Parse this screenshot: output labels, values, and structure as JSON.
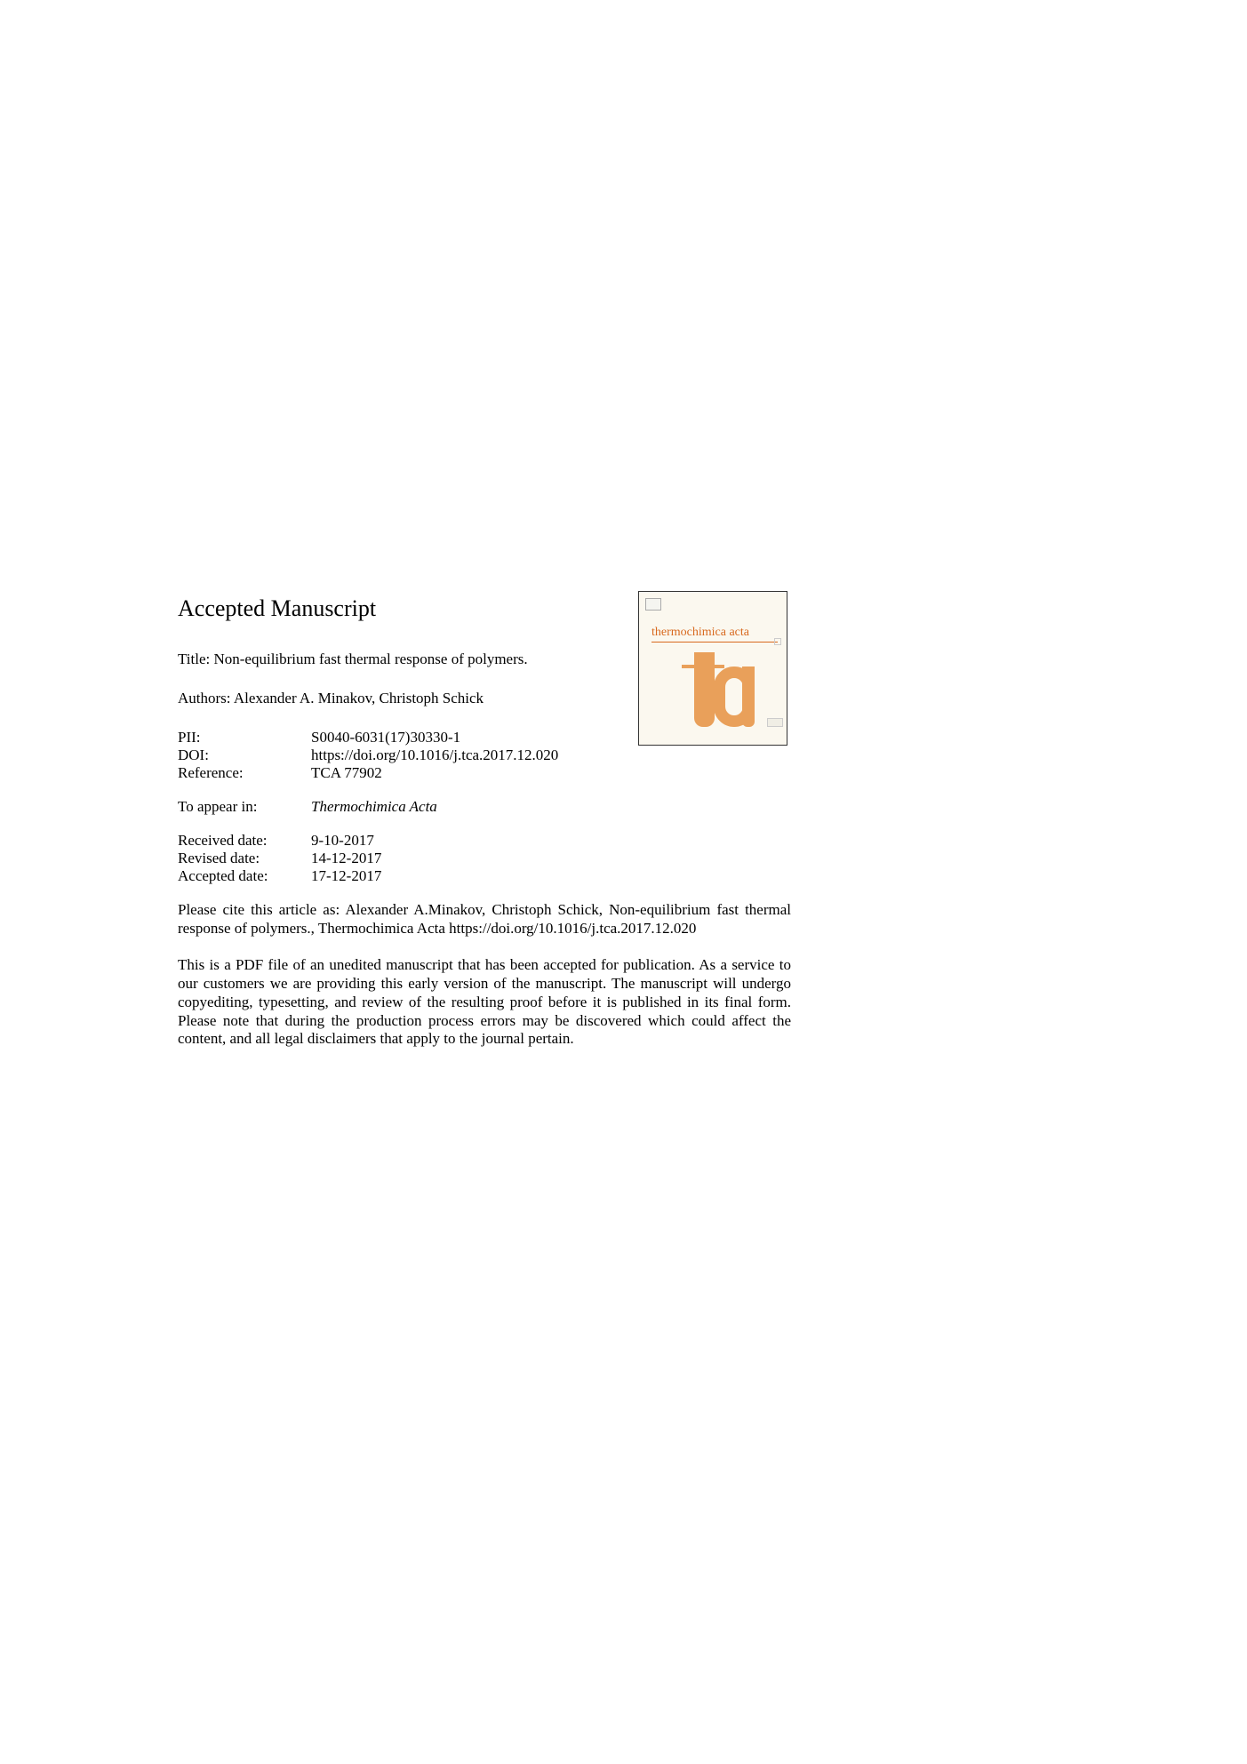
{
  "heading": "Accepted Manuscript",
  "title_prefix": "Title: ",
  "title": "Non-equilibrium fast thermal response of polymers.",
  "authors_prefix": "Authors: ",
  "authors": "Alexander A. Minakov, Christoph Schick",
  "meta": {
    "pii": {
      "label": "PII:",
      "value": "S0040-6031(17)30330-1"
    },
    "doi": {
      "label": "DOI:",
      "value": "https://doi.org/10.1016/j.tca.2017.12.020"
    },
    "reference": {
      "label": "Reference:",
      "value": "TCA 77902"
    },
    "appear_in": {
      "label": "To appear in:",
      "value": "Thermochimica Acta"
    },
    "received": {
      "label": "Received date:",
      "value": "9-10-2017"
    },
    "revised": {
      "label": "Revised date:",
      "value": "14-12-2017"
    },
    "accepted": {
      "label": "Accepted date:",
      "value": "17-12-2017"
    }
  },
  "citation": "Please cite this article as: Alexander A.Minakov, Christoph Schick, Non-equilibrium fast thermal response of polymers., Thermochimica Acta https://doi.org/10.1016/j.tca.2017.12.020",
  "disclaimer": "This is a PDF file of an unedited manuscript that has been accepted for publication. As a service to our customers we are providing this early version of the manuscript. The manuscript will undergo copyediting, typesetting, and review of the resulting proof before it is published in its final form. Please note that during the production process errors may be discovered which could affect the content, and all legal disclaimers that apply to the journal pertain.",
  "cover": {
    "journal_name": "thermochimica acta"
  }
}
